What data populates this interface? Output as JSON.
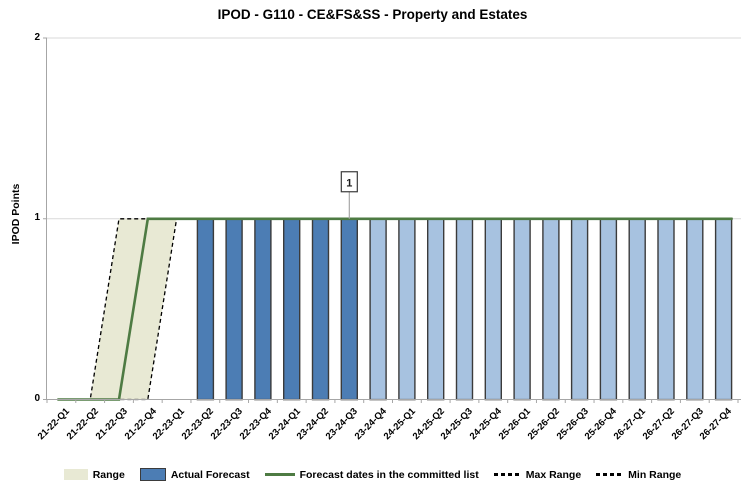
{
  "chart_data": {
    "type": "bar",
    "title": "IPOD - G110 - CE&FS&SS - Property and Estates",
    "ylabel": "IPOD Points",
    "ylim": [
      0,
      2
    ],
    "yticks": [
      0,
      1,
      2
    ],
    "grid": "horizontal",
    "legend_position": "bottom",
    "categories": [
      "21-22-Q1",
      "21-22-Q2",
      "21-22-Q3",
      "21-22-Q4",
      "22-23-Q1",
      "22-23-Q2",
      "22-23-Q3",
      "22-23-Q4",
      "23-24-Q1",
      "23-24-Q2",
      "23-24-Q3",
      "23-24-Q4",
      "24-25-Q1",
      "24-25-Q2",
      "24-25-Q3",
      "24-25-Q4",
      "25-26-Q1",
      "25-26-Q2",
      "25-26-Q3",
      "25-26-Q4",
      "26-27-Q1",
      "26-27-Q2",
      "26-27-Q3",
      "26-27-Q4"
    ],
    "bars": {
      "name": "Actual Forecast",
      "values": [
        null,
        null,
        null,
        null,
        null,
        1,
        1,
        1,
        1,
        1,
        1,
        1,
        1,
        1,
        1,
        1,
        1,
        1,
        1,
        1,
        1,
        1,
        1,
        1
      ],
      "styles": [
        "",
        "",
        "",
        "",
        "",
        "dark",
        "dark",
        "dark",
        "dark",
        "dark",
        "dark",
        "light",
        "light",
        "light",
        "light",
        "light",
        "light",
        "light",
        "light",
        "light",
        "light",
        "light",
        "light",
        "light"
      ]
    },
    "lines": [
      {
        "name": "Max Range",
        "style": "dashed",
        "values": [
          0,
          0,
          1,
          1,
          1,
          1,
          1,
          1,
          1,
          1,
          1,
          1,
          1,
          1,
          1,
          1,
          1,
          1,
          1,
          1,
          1,
          1,
          1,
          1
        ]
      },
      {
        "name": "Forecast dates in the committed list",
        "style": "solid",
        "values": [
          0,
          0,
          0,
          1,
          1,
          1,
          1,
          1,
          1,
          1,
          1,
          1,
          1,
          1,
          1,
          1,
          1,
          1,
          1,
          1,
          1,
          1,
          1,
          1
        ]
      },
      {
        "name": "Min Range",
        "style": "dashed",
        "values": [
          0,
          0,
          0,
          0,
          1,
          1,
          1,
          1,
          1,
          1,
          1,
          1,
          1,
          1,
          1,
          1,
          1,
          1,
          1,
          1,
          1,
          1,
          1,
          1
        ]
      }
    ],
    "band": {
      "name": "Range",
      "upper": "Max Range",
      "lower": "Min Range"
    },
    "annotation": {
      "label": "1",
      "category": "23-24-Q3",
      "value": 1
    },
    "colors": {
      "bar_dark": "#4C7DB4",
      "bar_light": "#A7C2E0",
      "bar_border": "#3B3B3B",
      "band_fill": "#E8E9D4",
      "committed_line": "#4E7B43",
      "range_dash": "#000000",
      "gridline": "#D9D9D9",
      "axis": "#A6A6A6",
      "annotation_border": "#3B3B3B",
      "annotation_text": "#1A1A1A"
    }
  }
}
